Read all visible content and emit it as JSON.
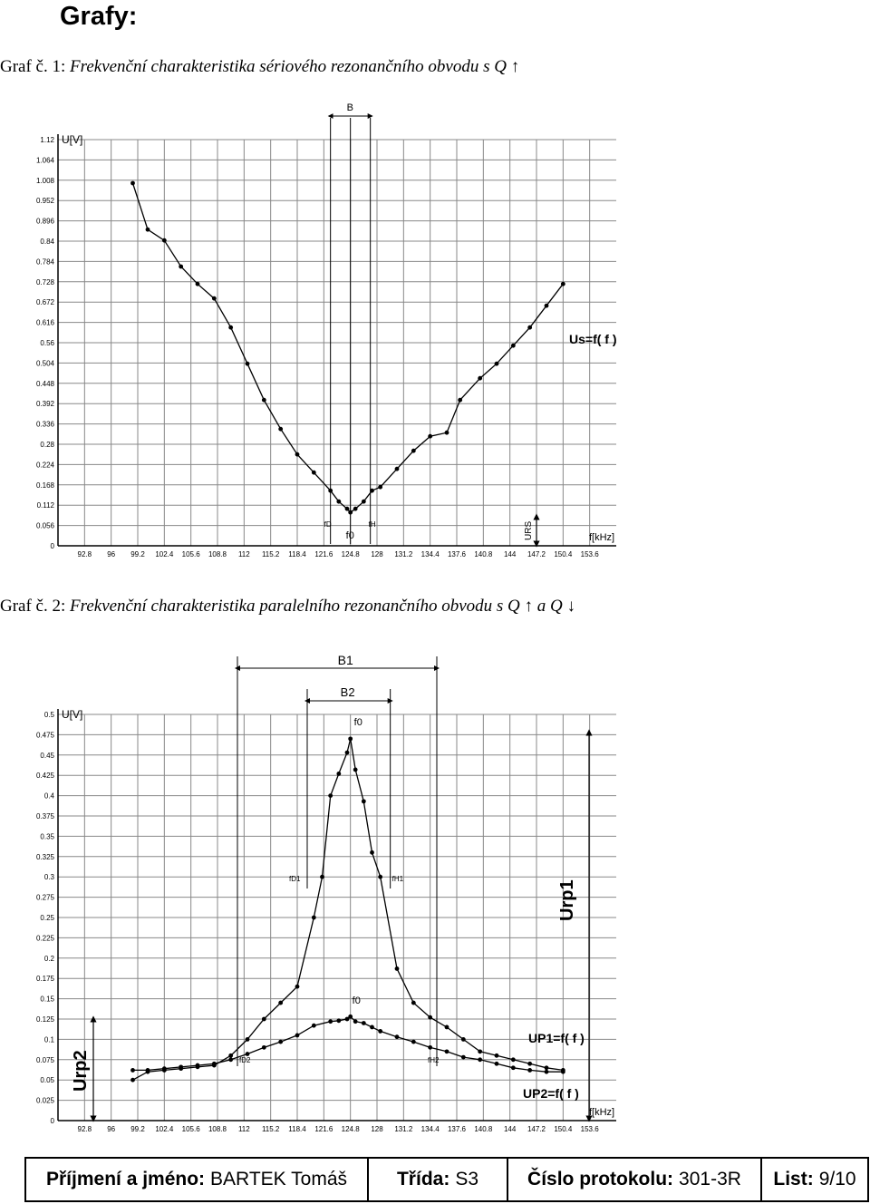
{
  "page": {
    "heading": "Grafy:",
    "caption1": {
      "prefix": "Graf č. 1: ",
      "text": "Frekvenční charakteristika sériového rezonančního obvodu s Q ↑"
    },
    "caption2": {
      "prefix": "Graf č. 2: ",
      "text": "Frekvenční charakteristika paralelního rezonančního obvodu s Q ↑ a Q ↓"
    }
  },
  "footer": {
    "name_label": "Příjmení a jméno:",
    "name_value": "BARTEK Tomáš",
    "class_label": "Třída:",
    "class_value": "S3",
    "protocol_label": "Číslo protokolu:",
    "protocol_value": "301-3R",
    "sheet_label": "List:",
    "sheet_value": "9/10"
  },
  "chart_data": [
    {
      "type": "line",
      "title": "",
      "xlabel": "f[kHz]",
      "ylabel": "U[V]",
      "x_ticks": [
        "92.8",
        "96",
        "99.2",
        "102.4",
        "105.6",
        "108.8",
        "112",
        "115.2",
        "118.4",
        "121.6",
        "124.8",
        "128",
        "131.2",
        "134.4",
        "137.6",
        "140.8",
        "144",
        "147.2",
        "150.4",
        "153.6"
      ],
      "y_ticks": [
        "0",
        "0.056",
        "0.112",
        "0.168",
        "0.224",
        "0.28",
        "0.336",
        "0.392",
        "0.448",
        "0.504",
        "0.56",
        "0.616",
        "0.672",
        "0.728",
        "0.784",
        "0.84",
        "0.896",
        "0.952",
        "1.008",
        "1.064",
        "1.12"
      ],
      "xlim": [
        89.6,
        156.8
      ],
      "ylim": [
        0,
        1.12
      ],
      "grid": true,
      "series": [
        {
          "label": "Us=f( f )",
          "x": [
            98.6,
            100.4,
            102.4,
            104.4,
            106.4,
            108.4,
            110.4,
            112.4,
            114.4,
            116.4,
            118.4,
            120.4,
            122.4,
            123.4,
            124.4,
            124.8,
            125.4,
            126.4,
            127.4,
            128.4,
            130.4,
            132.4,
            134.4,
            136.4,
            138.0,
            140.4,
            142.4,
            144.4,
            146.4,
            148.4,
            150.4
          ],
          "y": [
            1.0,
            0.872,
            0.842,
            0.77,
            0.722,
            0.682,
            0.602,
            0.502,
            0.402,
            0.322,
            0.252,
            0.202,
            0.152,
            0.122,
            0.102,
            0.092,
            0.102,
            0.122,
            0.152,
            0.162,
            0.212,
            0.262,
            0.302,
            0.312,
            0.402,
            0.462,
            0.502,
            0.552,
            0.602,
            0.662,
            0.722
          ]
        }
      ],
      "annotations": [
        "B",
        "f0",
        "fD",
        "fH",
        "URS"
      ]
    },
    {
      "type": "line",
      "title": "",
      "xlabel": "f[kHz]",
      "ylabel": "U[V]",
      "x_ticks": [
        "92.8",
        "96",
        "99.2",
        "102.4",
        "105.6",
        "108.8",
        "112",
        "115.2",
        "118.4",
        "121.6",
        "124.8",
        "128",
        "131.2",
        "134.4",
        "137.6",
        "140.8",
        "144",
        "147.2",
        "150.4",
        "153.6"
      ],
      "y_ticks": [
        "0",
        "0.025",
        "0.05",
        "0.075",
        "0.1",
        "0.125",
        "0.15",
        "0.175",
        "0.2",
        "0.225",
        "0.25",
        "0.275",
        "0.3",
        "0.325",
        "0.35",
        "0.375",
        "0.4",
        "0.425",
        "0.45",
        "0.475",
        "0.5"
      ],
      "xlim": [
        89.6,
        156.8
      ],
      "ylim": [
        0,
        0.5
      ],
      "grid": true,
      "series": [
        {
          "label": "UP1=f( f )",
          "x": [
            98.6,
            100.4,
            102.4,
            104.4,
            106.4,
            108.4,
            110.4,
            112.4,
            114.4,
            116.4,
            118.4,
            120.4,
            121.4,
            122.4,
            123.4,
            124.4,
            124.8,
            125.4,
            126.4,
            127.4,
            128.4,
            130.4,
            132.4,
            134.4,
            136.4,
            138.4,
            140.4,
            142.4,
            144.4,
            146.4,
            148.4,
            150.4
          ],
          "y": [
            0.05,
            0.06,
            0.062,
            0.064,
            0.066,
            0.068,
            0.08,
            0.1,
            0.125,
            0.145,
            0.165,
            0.25,
            0.3,
            0.4,
            0.427,
            0.453,
            0.47,
            0.432,
            0.393,
            0.33,
            0.3,
            0.187,
            0.145,
            0.127,
            0.115,
            0.1,
            0.085,
            0.08,
            0.075,
            0.07,
            0.065,
            0.062
          ]
        },
        {
          "label": "UP2=f( f )",
          "x": [
            98.6,
            100.4,
            102.4,
            104.4,
            106.4,
            108.4,
            110.4,
            112.4,
            114.4,
            116.4,
            118.4,
            120.4,
            122.4,
            123.4,
            124.4,
            124.8,
            125.4,
            126.4,
            127.4,
            128.4,
            130.4,
            132.4,
            134.4,
            136.4,
            138.4,
            140.4,
            142.4,
            144.4,
            146.4,
            148.4,
            150.4
          ],
          "y": [
            0.062,
            0.062,
            0.064,
            0.066,
            0.068,
            0.07,
            0.075,
            0.082,
            0.09,
            0.097,
            0.105,
            0.117,
            0.122,
            0.123,
            0.125,
            0.128,
            0.122,
            0.12,
            0.115,
            0.11,
            0.103,
            0.097,
            0.09,
            0.085,
            0.078,
            0.075,
            0.07,
            0.065,
            0.062,
            0.06,
            0.06
          ]
        }
      ],
      "annotations": [
        "B1",
        "B2",
        "f0",
        "fD1",
        "fH1",
        "fD2",
        "fH2",
        "Urp1",
        "Urp2"
      ]
    }
  ]
}
